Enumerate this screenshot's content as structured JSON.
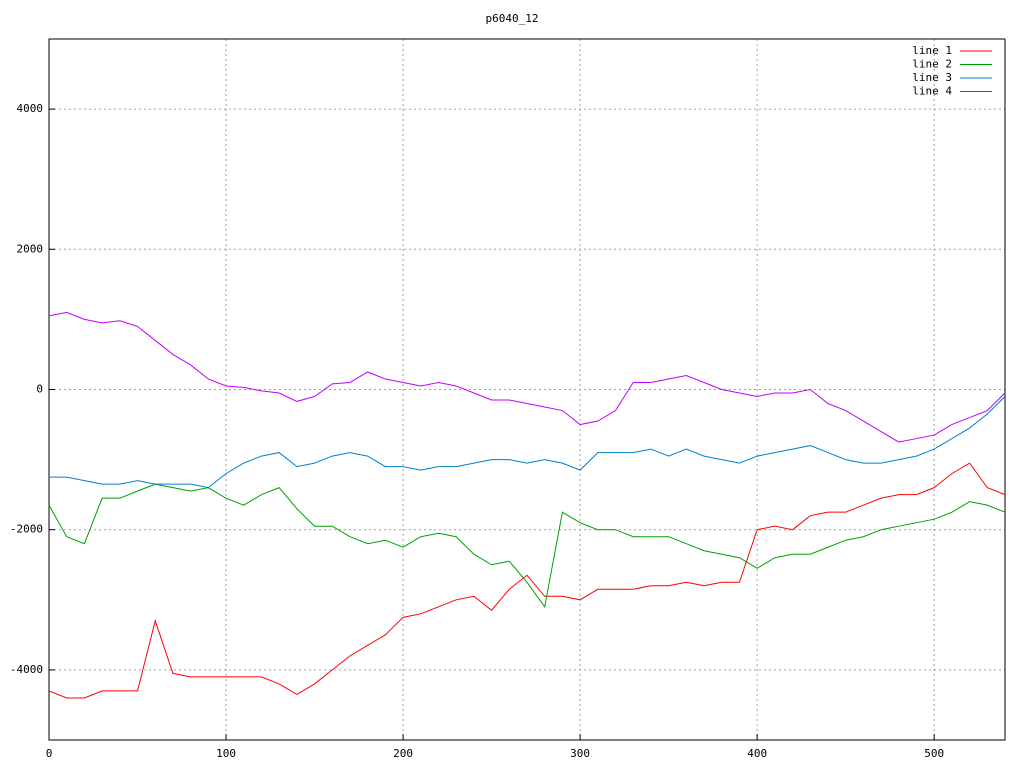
{
  "chart_data": {
    "type": "line",
    "title": "p6040_12",
    "x": [
      0,
      10,
      20,
      30,
      40,
      50,
      60,
      70,
      80,
      90,
      100,
      110,
      120,
      130,
      140,
      150,
      160,
      170,
      180,
      190,
      200,
      210,
      220,
      230,
      240,
      250,
      260,
      270,
      280,
      290,
      300,
      310,
      320,
      330,
      340,
      350,
      360,
      370,
      380,
      390,
      400,
      410,
      420,
      430,
      440,
      450,
      460,
      470,
      480,
      490,
      500,
      510,
      520,
      530,
      540
    ],
    "series": [
      {
        "name": "line 1",
        "color": "#ff0000",
        "values": [
          -4300,
          -4400,
          -4400,
          -4300,
          -4300,
          -4300,
          -3300,
          -4050,
          -4100,
          -4100,
          -4100,
          -4100,
          -4100,
          -4200,
          -4350,
          -4200,
          -4000,
          -3800,
          -3650,
          -3500,
          -3250,
          -3200,
          -3100,
          -3000,
          -2950,
          -3150,
          -2850,
          -2650,
          -2950,
          -2950,
          -3000,
          -2850,
          -2850,
          -2850,
          -2800,
          -2800,
          -2750,
          -2800,
          -2750,
          -2750,
          -2000,
          -1950,
          -2000,
          -1800,
          -1750,
          -1750,
          -1650,
          -1550,
          -1500,
          -1500,
          -1400,
          -1200,
          -1050,
          -1400,
          -1500
        ]
      },
      {
        "name": "line 2",
        "color": "#00a000",
        "values": [
          -1650,
          -2100,
          -2200,
          -1550,
          -1550,
          -1450,
          -1350,
          -1400,
          -1450,
          -1400,
          -1550,
          -1650,
          -1500,
          -1400,
          -1700,
          -1950,
          -1950,
          -2100,
          -2200,
          -2150,
          -2250,
          -2100,
          -2050,
          -2100,
          -2350,
          -2500,
          -2450,
          -2750,
          -3100,
          -1750,
          -1900,
          -2000,
          -2000,
          -2100,
          -2100,
          -2100,
          -2200,
          -2300,
          -2350,
          -2400,
          -2550,
          -2400,
          -2350,
          -2350,
          -2250,
          -2150,
          -2100,
          -2000,
          -1950,
          -1900,
          -1850,
          -1750,
          -1600,
          -1650,
          -1750
        ]
      },
      {
        "name": "line 3",
        "color": "#0080d0",
        "values": [
          -1250,
          -1250,
          -1300,
          -1350,
          -1350,
          -1300,
          -1350,
          -1350,
          -1350,
          -1400,
          -1200,
          -1050,
          -950,
          -900,
          -1100,
          -1050,
          -950,
          -900,
          -950,
          -1100,
          -1100,
          -1150,
          -1100,
          -1100,
          -1050,
          -1000,
          -1000,
          -1050,
          -1000,
          -1050,
          -1150,
          -900,
          -900,
          -900,
          -850,
          -950,
          -850,
          -950,
          -1000,
          -1050,
          -950,
          -900,
          -850,
          -800,
          -900,
          -1000,
          -1050,
          -1050,
          -1000,
          -950,
          -850,
          -700,
          -550,
          -350,
          -100
        ]
      },
      {
        "name": "line 4",
        "color": "#c000ff",
        "values": [
          1050,
          1100,
          1000,
          950,
          980,
          900,
          700,
          500,
          350,
          150,
          50,
          30,
          -20,
          -50,
          -170,
          -100,
          80,
          100,
          250,
          150,
          100,
          50,
          100,
          50,
          -50,
          -150,
          -150,
          -200,
          -250,
          -300,
          -500,
          -450,
          -300,
          100,
          100,
          150,
          200,
          100,
          0,
          -50,
          -100,
          -50,
          -50,
          0,
          -200,
          -300,
          -450,
          -600,
          -750,
          -700,
          -650,
          -500,
          -400,
          -300,
          -50
        ]
      }
    ],
    "xlim": [
      0,
      540
    ],
    "ylim": [
      -5000,
      5000
    ],
    "xticks": [
      0,
      100,
      200,
      300,
      400,
      500
    ],
    "yticks": [
      -4000,
      -2000,
      0,
      2000,
      4000
    ],
    "grid": true,
    "legend": "top-right"
  }
}
